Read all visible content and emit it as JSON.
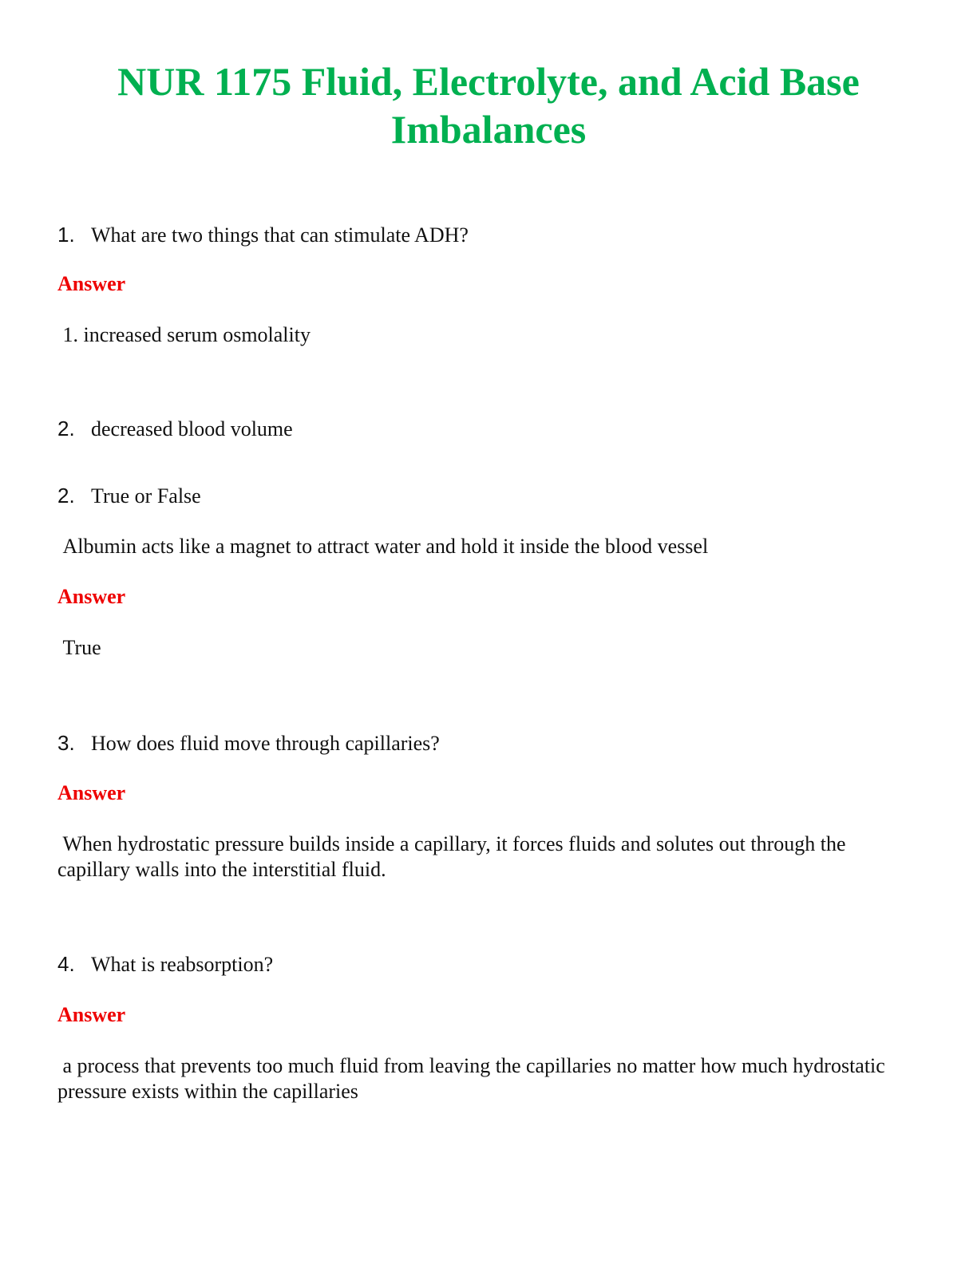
{
  "title": "NUR 1175 Fluid, Electrolyte, and Acid Base Imbalances",
  "items": [
    {
      "number": "1.",
      "text": "What are two things that can stimulate ADH?"
    },
    {
      "label": "Answer"
    },
    {
      "text": "1. increased serum osmolality"
    },
    {
      "number": "2.",
      "text": "decreased blood volume"
    },
    {
      "number": "2.",
      "text": "True or False"
    },
    {
      "text": "Albumin acts like a magnet to attract water and hold it inside the blood vessel"
    },
    {
      "label": "Answer"
    },
    {
      "text": "True"
    },
    {
      "number": "3.",
      "text": "How does fluid move through capillaries?"
    },
    {
      "label": "Answer"
    },
    {
      "text": "When hydrostatic pressure builds inside a capillary, it forces fluids and solutes out through the capillary walls into the interstitial fluid."
    },
    {
      "number": "4.",
      "text": "What is reabsorption?"
    },
    {
      "label": "Answer"
    },
    {
      "text": "a process that prevents too much fluid from leaving the capillaries no matter how much hydrostatic pressure exists within the capillaries"
    }
  ]
}
